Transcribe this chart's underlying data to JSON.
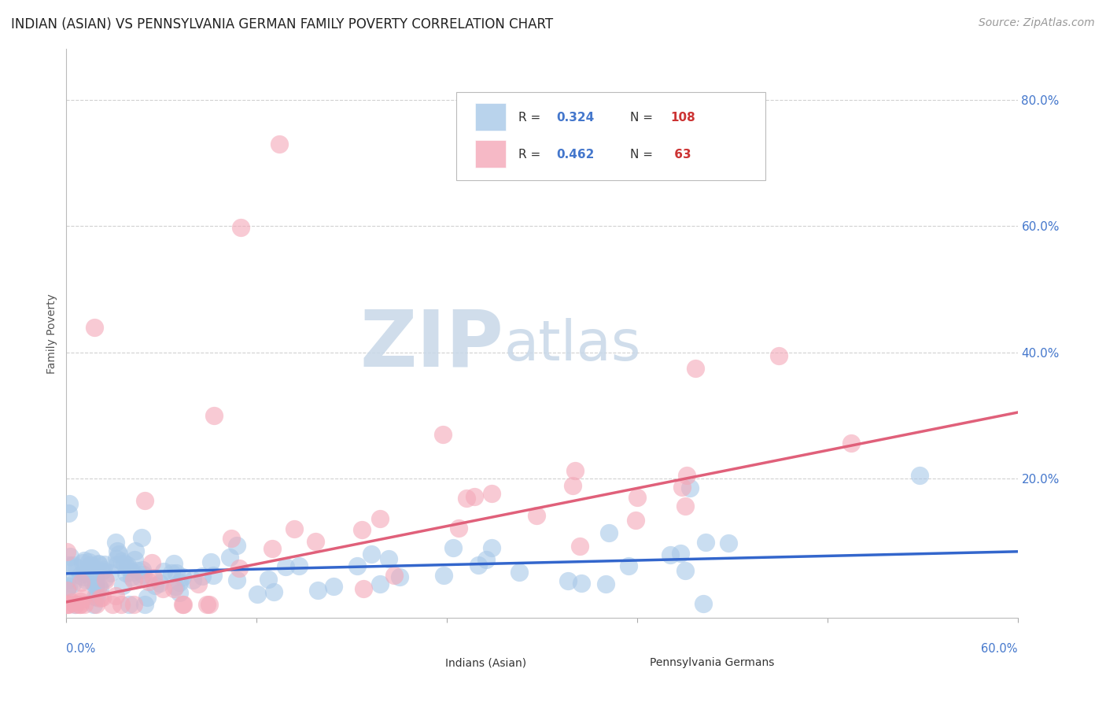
{
  "title": "INDIAN (ASIAN) VS PENNSYLVANIA GERMAN FAMILY POVERTY CORRELATION CHART",
  "source": "Source: ZipAtlas.com",
  "ylabel": "Family Poverty",
  "xlim": [
    0.0,
    0.6
  ],
  "ylim": [
    -0.02,
    0.88
  ],
  "ytick_vals": [
    0.2,
    0.4,
    0.6,
    0.8
  ],
  "ytick_labels": [
    "20.0%",
    "40.0%",
    "60.0%",
    "80.0%"
  ],
  "xtick_vals": [
    0.0,
    0.12,
    0.24,
    0.36,
    0.48,
    0.6
  ],
  "indian_R": 0.324,
  "indian_N": 108,
  "pg_R": 0.462,
  "pg_N": 63,
  "indian_color": "#a8c8e8",
  "pg_color": "#f4a8b8",
  "indian_line_color": "#3366cc",
  "pg_line_color": "#e0607a",
  "indian_line_intercept": 0.05,
  "indian_line_slope": 0.058,
  "pg_line_intercept": 0.005,
  "pg_line_slope": 0.5,
  "watermark_zip": "ZIP",
  "watermark_atlas": "atlas",
  "watermark_color_zip": "#c8d8e8",
  "watermark_color_atlas": "#c8d8e8",
  "background_color": "#ffffff",
  "grid_color": "#cccccc",
  "title_fontsize": 12,
  "source_fontsize": 10,
  "ylabel_fontsize": 10,
  "tick_label_color": "#4477cc",
  "legend_R_color": "#4477cc",
  "legend_N_color": "#cc3333",
  "legend_text_color": "#333333",
  "bottom_legend_color": "#333333"
}
